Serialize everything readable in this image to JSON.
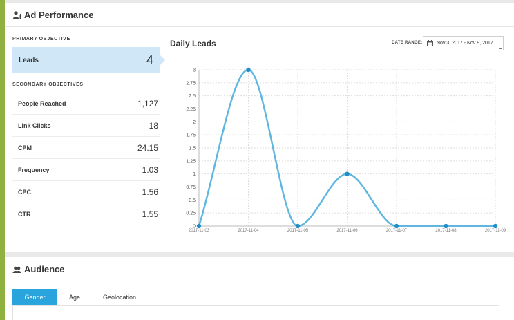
{
  "ad_performance": {
    "title": "Ad Performance",
    "icon": "users-chart-icon",
    "primary_objective_label": "PRIMARY OBJECTIVE",
    "primary": {
      "name": "Leads",
      "value": "4"
    },
    "secondary_objectives_label": "SECONDARY OBJECTIVES",
    "secondary": [
      {
        "name": "People Reached",
        "value": "1,127"
      },
      {
        "name": "Link Clicks",
        "value": "18"
      },
      {
        "name": "CPM",
        "value": "24.15"
      },
      {
        "name": "Frequency",
        "value": "1.03"
      },
      {
        "name": "CPC",
        "value": "1.56"
      },
      {
        "name": "CTR",
        "value": "1.55"
      }
    ],
    "date_range_label": "DATE RANGE:",
    "date_range_value": "Nov 3, 2017 - Nov 9, 2017"
  },
  "colors": {
    "accent": "#29a4dd",
    "line": "#5fb7e0",
    "point": "#1f8dc8",
    "highlight": "#cfe7f7",
    "left_bar": "#8fb13f"
  },
  "chart_data": {
    "type": "line",
    "title": "Daily Leads",
    "x": [
      "2017-11-03",
      "2017-11-04",
      "2017-11-05",
      "2017-11-06",
      "2017-11-07",
      "2017-11-08",
      "2017-11-09"
    ],
    "series": [
      {
        "values": [
          0,
          3,
          0,
          1,
          0,
          0,
          0
        ]
      }
    ],
    "yticks": [
      "0",
      "0.25",
      "0.5",
      "0.75",
      "1",
      "1.25",
      "1.5",
      "1.75",
      "2",
      "2.25",
      "2.5",
      "2.75",
      "3"
    ],
    "ylim": [
      0,
      3
    ],
    "grid": true,
    "smooth": true
  },
  "audience": {
    "title": "Audience",
    "icon": "users-icon",
    "tabs": [
      "Gender",
      "Age",
      "Geolocation"
    ],
    "active_tab": "Gender"
  }
}
